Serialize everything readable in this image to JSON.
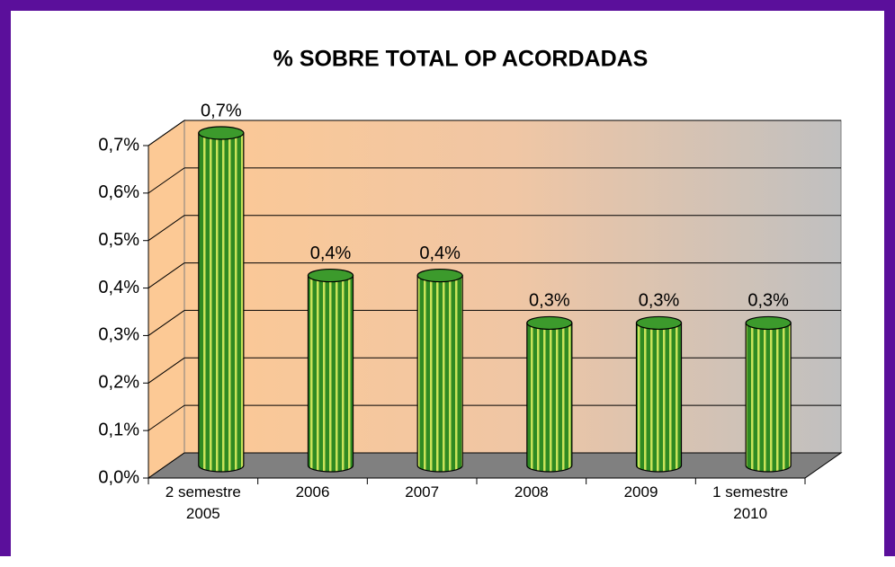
{
  "chart_data": {
    "type": "bar",
    "title": "% SOBRE TOTAL OP ACORDADAS",
    "categories": [
      "2 semestre 2005",
      "2006",
      "2007",
      "2008",
      "2009",
      "1 semestre 2010"
    ],
    "values": [
      0.7,
      0.4,
      0.4,
      0.3,
      0.3,
      0.3
    ],
    "value_labels": [
      "0,7%",
      "0,4%",
      "0,4%",
      "0,3%",
      "0,3%",
      "0,3%"
    ],
    "color": "#3c9a2c",
    "ylim": [
      0,
      0.7
    ],
    "yticks": [
      {
        "value": 0,
        "label": "0,0%"
      },
      {
        "value": 0.1,
        "label": "0,1%"
      },
      {
        "value": 0.2,
        "label": "0,2%"
      },
      {
        "value": 0.3,
        "label": "0,3%"
      },
      {
        "value": 0.4,
        "label": "0,4%"
      },
      {
        "value": 0.5,
        "label": "0,5%"
      },
      {
        "value": 0.6,
        "label": "0,6%"
      },
      {
        "value": 0.7,
        "label": "0,7%"
      }
    ],
    "grid": true
  }
}
